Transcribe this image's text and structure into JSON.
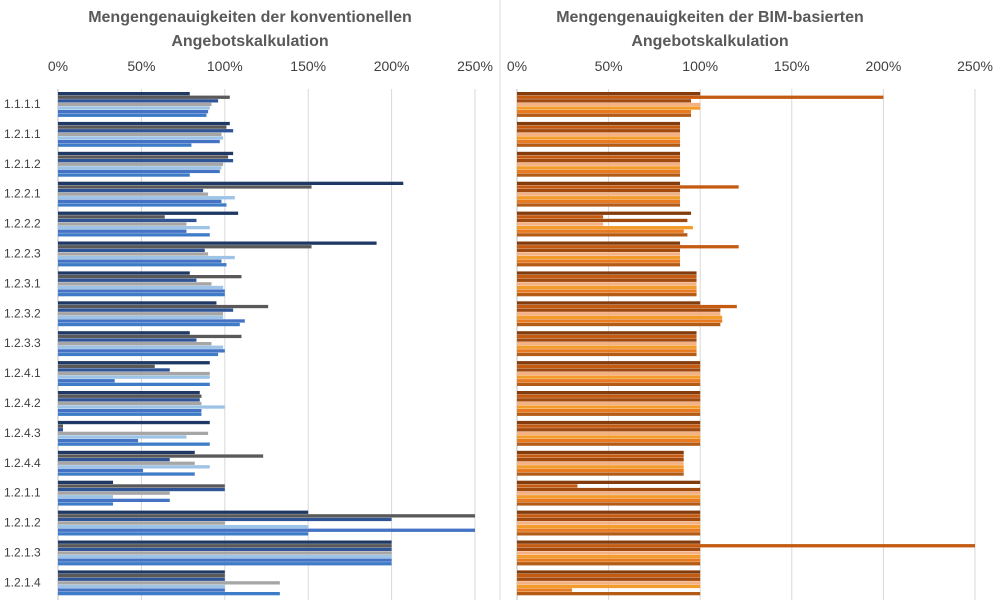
{
  "chart_data": [
    {
      "type": "bar",
      "orientation": "horizontal",
      "title_line1": "Mengengenauigkeiten der konventionellen",
      "title_line2": "Angebotskalkulation",
      "xlim": [
        0,
        250
      ],
      "xticks": [
        "0%",
        "50%",
        "100%",
        "150%",
        "200%",
        "250%"
      ],
      "grid": true,
      "legend": "none",
      "categories": [
        "1.1.1.1",
        "1.2.1.1",
        "1.2.1.2",
        "1.2.2.1",
        "1.2.2.2",
        "1.2.2.3",
        "1.2.3.1",
        "1.2.3.2",
        "1.2.3.3",
        "1.2.4.1",
        "1.2.4.2",
        "1.2.4.3",
        "1.2.4.4",
        "1.2.1.1",
        "1.2.1.2",
        "1.2.1.3",
        "1.2.1.4"
      ],
      "colors": [
        "#1f3864",
        "#595959",
        "#2f5597",
        "#a6a6a6",
        "#9dc3e6",
        "#4472c4",
        "#3e7cc7"
      ],
      "series": [
        {
          "values": [
            79,
            103,
            105,
            207,
            108,
            191,
            79,
            95,
            79,
            91,
            85,
            91,
            82,
            33,
            150,
            200,
            100
          ]
        },
        {
          "values": [
            103,
            101,
            102,
            152,
            64,
            152,
            110,
            126,
            110,
            58,
            86,
            3,
            123,
            100,
            250,
            200,
            100
          ]
        },
        {
          "values": [
            96,
            105,
            105,
            87,
            83,
            88,
            83,
            105,
            83,
            67,
            85,
            3,
            67,
            100,
            200,
            200,
            100
          ]
        },
        {
          "values": [
            92,
            98,
            99,
            90,
            77,
            90,
            92,
            99,
            92,
            91,
            86,
            90,
            82,
            67,
            100,
            200,
            133
          ]
        },
        {
          "values": [
            91,
            99,
            98,
            106,
            91,
            106,
            99,
            99,
            99,
            91,
            100,
            77,
            91,
            33,
            150,
            200,
            100
          ]
        },
        {
          "values": [
            90,
            97,
            97,
            98,
            77,
            98,
            100,
            112,
            100,
            34,
            86,
            48,
            51,
            67,
            250,
            200,
            100
          ]
        },
        {
          "values": [
            89,
            80,
            79,
            101,
            91,
            101,
            100,
            109,
            96,
            91,
            86,
            91,
            82,
            33,
            150,
            200,
            133
          ]
        }
      ]
    },
    {
      "type": "bar",
      "orientation": "horizontal",
      "title_line1": "Mengengenauigkeiten der BIM-basierten",
      "title_line2": "Angebotskalkulation",
      "xlim": [
        0,
        250
      ],
      "xticks": [
        "0%",
        "50%",
        "100%",
        "150%",
        "200%",
        "250%"
      ],
      "grid": true,
      "legend": "none",
      "categories": [
        "1.1.1.1",
        "1.2.1.1",
        "1.2.1.2",
        "1.2.2.1",
        "1.2.2.2",
        "1.2.2.3",
        "1.2.3.1",
        "1.2.3.2",
        "1.2.3.3",
        "1.2.4.1",
        "1.2.4.2",
        "1.2.4.3",
        "1.2.4.4",
        "1.2.1.1",
        "1.2.1.2",
        "1.2.1.3",
        "1.2.1.4"
      ],
      "colors": [
        "#843c0c",
        "#c55a11",
        "#a04a10",
        "#f4b183",
        "#f39c2c",
        "#e87b22",
        "#b45b16"
      ],
      "series": [
        {
          "values": [
            100,
            89,
            89,
            89,
            95,
            89,
            98,
            100,
            98,
            100,
            100,
            100,
            91,
            100,
            100,
            100,
            100
          ]
        },
        {
          "values": [
            200,
            89,
            89,
            121,
            47,
            121,
            98,
            120,
            98,
            100,
            100,
            100,
            91,
            33,
            100,
            250,
            100
          ]
        },
        {
          "values": [
            95,
            89,
            89,
            89,
            93,
            89,
            98,
            111,
            98,
            100,
            100,
            100,
            91,
            100,
            100,
            100,
            100
          ]
        },
        {
          "values": [
            100,
            89,
            89,
            89,
            47,
            89,
            98,
            111,
            98,
            100,
            100,
            100,
            91,
            100,
            100,
            100,
            100
          ]
        },
        {
          "values": [
            100,
            89,
            89,
            89,
            96,
            89,
            98,
            112,
            98,
            100,
            100,
            100,
            91,
            100,
            100,
            100,
            100
          ]
        },
        {
          "values": [
            95,
            89,
            89,
            89,
            91,
            89,
            98,
            112,
            98,
            100,
            100,
            100,
            91,
            100,
            100,
            100,
            30
          ]
        },
        {
          "values": [
            95,
            89,
            89,
            89,
            93,
            89,
            98,
            111,
            98,
            100,
            100,
            100,
            91,
            100,
            100,
            100,
            100
          ]
        }
      ]
    }
  ]
}
